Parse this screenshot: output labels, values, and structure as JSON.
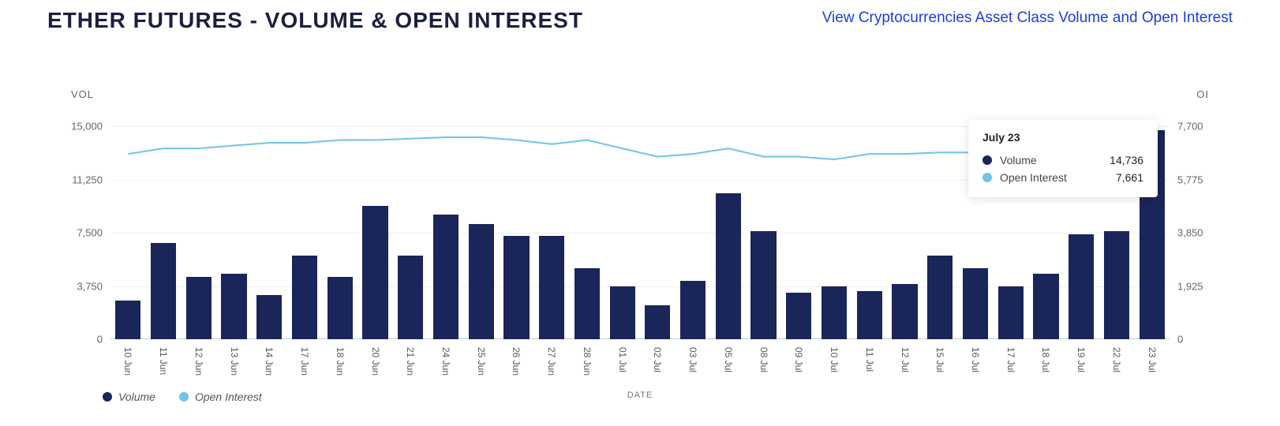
{
  "header": {
    "title": "ETHER FUTURES - VOLUME & OPEN INTEREST",
    "link_text": "View Cryptocurrencies Asset Class Volume and Open Interest"
  },
  "colors": {
    "title": "#1a2040",
    "link": "#1a3ee0",
    "volume_bar": "#1a2559",
    "open_interest_line": "#6ec5e9",
    "grid": "#eeeeee",
    "baseline": "#cccccc",
    "axis_text": "#666666",
    "background": "#ffffff"
  },
  "chart": {
    "type": "bar+line",
    "left_axis": {
      "title": "VOL",
      "min": 0,
      "max": 15000,
      "ticks": [
        0,
        3750,
        7500,
        11250,
        15000
      ],
      "tick_labels": [
        "0",
        "3,750",
        "7,500",
        "11,250",
        "15,000"
      ]
    },
    "right_axis": {
      "title": "OI",
      "min": 0,
      "max": 7700,
      "ticks": [
        0,
        1925,
        3850,
        5775,
        7700
      ],
      "tick_labels": [
        "0",
        "1,925",
        "3,850",
        "5,775",
        "7,700"
      ]
    },
    "x_axis": {
      "title": "DATE",
      "categories": [
        "10 Jun",
        "11 Jun",
        "12 Jun",
        "13 Jun",
        "14 Jun",
        "17 Jun",
        "18 Jun",
        "20 Jun",
        "21 Jun",
        "24 Jun",
        "25 Jun",
        "26 Jun",
        "27 Jun",
        "28 Jun",
        "01 Jul",
        "02 Jul",
        "03 Jul",
        "05 Jul",
        "08 Jul",
        "09 Jul",
        "10 Jul",
        "11 Jul",
        "12 Jul",
        "15 Jul",
        "16 Jul",
        "17 Jul",
        "18 Jul",
        "19 Jul",
        "22 Jul",
        "23 Jul"
      ]
    },
    "series_volume": {
      "name": "Volume",
      "type": "bar",
      "color": "#1a2559",
      "values": [
        2700,
        6800,
        4400,
        4600,
        3100,
        5900,
        4400,
        9400,
        5900,
        8800,
        8100,
        7300,
        7300,
        5000,
        3700,
        2400,
        4100,
        10300,
        7600,
        3300,
        3700,
        3400,
        3900,
        5900,
        5000,
        3700,
        4600,
        7400,
        7600,
        14736
      ]
    },
    "series_oi": {
      "name": "Open Interest",
      "type": "line",
      "color": "#6ec5e9",
      "line_width": 2,
      "values": [
        6700,
        6900,
        6900,
        7000,
        7100,
        7100,
        7200,
        7200,
        7250,
        7300,
        7300,
        7200,
        7050,
        7200,
        6900,
        6600,
        6700,
        6900,
        6600,
        6600,
        6500,
        6700,
        6700,
        6750,
        6750,
        6750,
        6700,
        6700,
        6800,
        7661
      ]
    },
    "bar_width_ratio": 0.72
  },
  "tooltip": {
    "title": "July 23",
    "rows": [
      {
        "color": "#1a2559",
        "label": "Volume",
        "value": "14,736"
      },
      {
        "color": "#6ec5e9",
        "label": "Open Interest",
        "value": "7,661"
      }
    ]
  },
  "legend": {
    "items": [
      {
        "color": "#1a2559",
        "label": "Volume"
      },
      {
        "color": "#6ec5e9",
        "label": "Open Interest"
      }
    ]
  }
}
